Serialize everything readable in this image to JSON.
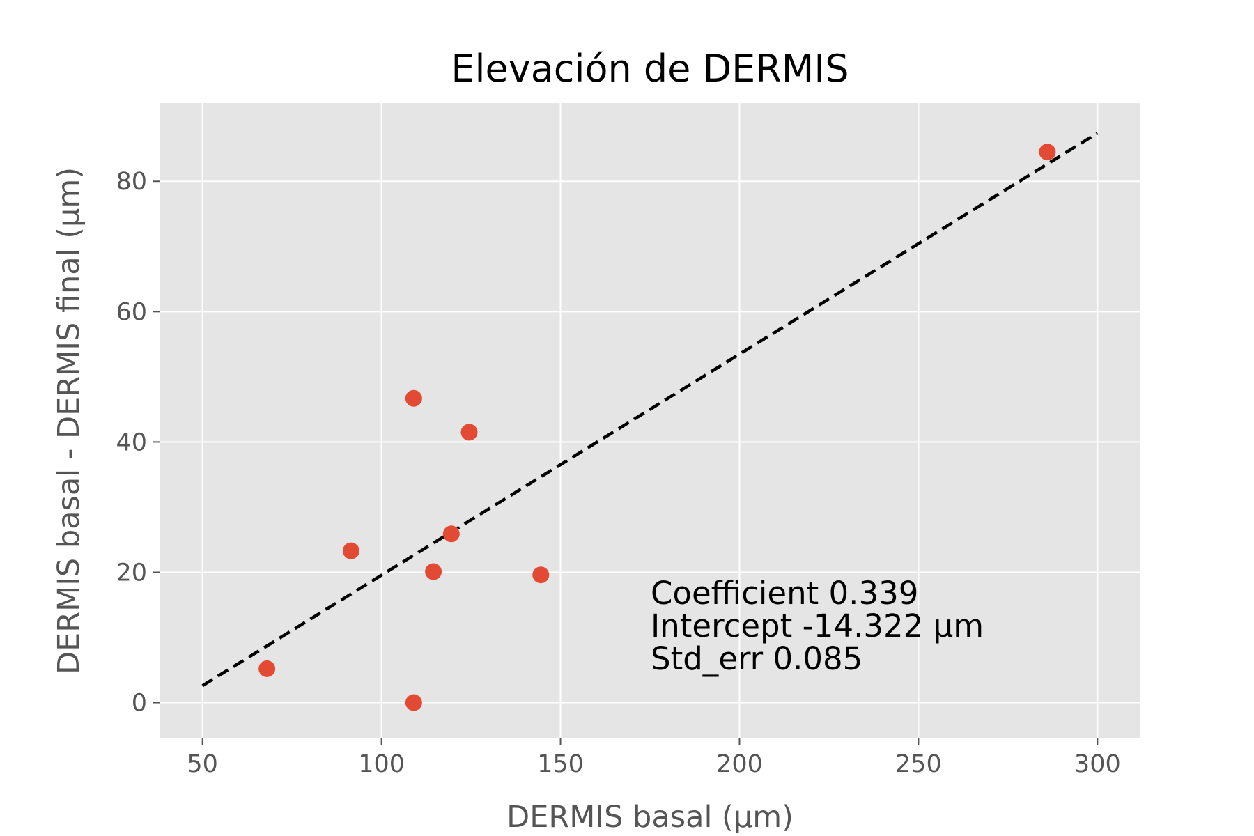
{
  "chart_data": {
    "type": "scatter",
    "title": "Elevación de DERMIS",
    "xlabel": "DERMIS basal (µm)",
    "ylabel": "DERMIS basal - DERMIS final (µm)",
    "xlim": [
      38,
      312
    ],
    "ylim": [
      -5.5,
      92
    ],
    "xticks": [
      50,
      100,
      150,
      200,
      250,
      300
    ],
    "xtick_labels": [
      "50",
      "100",
      "150",
      "200",
      "250",
      "300"
    ],
    "yticks": [
      0,
      20,
      40,
      60,
      80
    ],
    "ytick_labels": [
      "0",
      "20",
      "40",
      "60",
      "80"
    ],
    "grid": true,
    "series": [
      {
        "type": "scatter",
        "color": "#E24A33",
        "x": [
          68,
          91.5,
          109,
          109,
          114.5,
          119.5,
          124.5,
          144.5,
          286
        ],
        "y": [
          5.2,
          23.3,
          46.7,
          0,
          20.1,
          25.9,
          41.5,
          19.6,
          84.5
        ]
      },
      {
        "type": "line",
        "style": "dashed",
        "color": "#000000",
        "x": [
          50,
          300
        ],
        "y": [
          2.6,
          87.4
        ]
      }
    ],
    "annotations": [
      "Coefficient 0.339",
      "Intercept -14.322 µm",
      "Std_err 0.085"
    ],
    "colors": {
      "background": "#E5E5E5",
      "grid": "#FFFFFF",
      "marker": "#E24A33",
      "fit_line": "#000000"
    }
  }
}
